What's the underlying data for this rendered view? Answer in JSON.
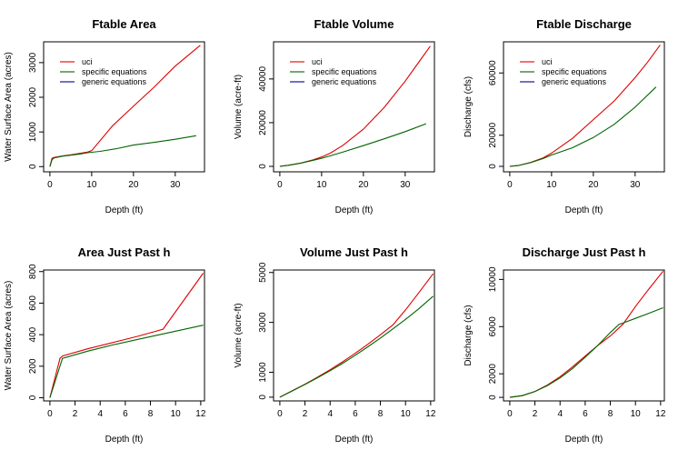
{
  "colors": {
    "uci": "#dd0000",
    "specific": "#006400",
    "generic": "#00008b",
    "axis": "#000000"
  },
  "legend": {
    "placement": "top-left",
    "entries": [
      "uci",
      "specific equations",
      "generic equations"
    ]
  },
  "chart_data": [
    {
      "type": "line",
      "title": "Ftable Area",
      "xlabel": "Depth (ft)",
      "ylabel": "Water Surface Area (acres)",
      "xlim": [
        -1.5,
        37
      ],
      "ylim": [
        -150,
        3600
      ],
      "xticks": [
        0,
        10,
        20,
        30
      ],
      "yticks": [
        0,
        1000,
        2000,
        3000
      ],
      "ytick_labels": [
        "0",
        "1000",
        "2000",
        "3000"
      ],
      "show_legend": true,
      "series": [
        {
          "name": "uci",
          "color": "#dd0000",
          "x": [
            0,
            0.5,
            1,
            3,
            5,
            7,
            9,
            10,
            15,
            20,
            25,
            30,
            36
          ],
          "y": [
            0,
            240,
            265,
            310,
            340,
            380,
            420,
            460,
            1180,
            1740,
            2300,
            2900,
            3500
          ]
        },
        {
          "name": "specific equations",
          "color": "#006400",
          "x": [
            0,
            0.5,
            1,
            3,
            5,
            7,
            9,
            12,
            16,
            20,
            25,
            30,
            35
          ],
          "y": [
            0,
            200,
            250,
            300,
            330,
            360,
            400,
            440,
            520,
            620,
            700,
            790,
            890
          ]
        }
      ]
    },
    {
      "type": "line",
      "title": "Ftable Volume",
      "xlabel": "Depth (ft)",
      "ylabel": "Volume (acre-ft)",
      "xlim": [
        -1.5,
        37
      ],
      "ylim": [
        -2500,
        57000
      ],
      "xticks": [
        0,
        10,
        20,
        30
      ],
      "yticks": [
        0,
        20000,
        40000
      ],
      "ytick_labels": [
        "0",
        "20000",
        "40000"
      ],
      "show_legend": true,
      "series": [
        {
          "name": "uci",
          "color": "#dd0000",
          "x": [
            0,
            2,
            5,
            8,
            10,
            12,
            15,
            20,
            25,
            30,
            33,
            36
          ],
          "y": [
            0,
            500,
            1500,
            3000,
            4300,
            6000,
            9500,
            17000,
            27000,
            39000,
            47000,
            55000
          ]
        },
        {
          "name": "specific equations",
          "color": "#006400",
          "x": [
            0,
            2,
            5,
            8,
            10,
            12,
            15,
            20,
            25,
            30,
            35
          ],
          "y": [
            0,
            500,
            1500,
            2800,
            3700,
            4800,
            6500,
            9500,
            12600,
            15900,
            19500
          ]
        }
      ]
    },
    {
      "type": "line",
      "title": "Ftable Discharge",
      "xlabel": "Depth (ft)",
      "ylabel": "Discharge (cfs)",
      "xlim": [
        -1.5,
        37
      ],
      "ylim": [
        -3500,
        80000
      ],
      "xticks": [
        0,
        10,
        20,
        30
      ],
      "yticks": [
        0,
        20000,
        60000
      ],
      "ytick_labels": [
        "0",
        "20000",
        "60000"
      ],
      "show_legend": true,
      "series": [
        {
          "name": "uci",
          "color": "#dd0000",
          "x": [
            0,
            2,
            5,
            8,
            10,
            15,
            20,
            25,
            30,
            33,
            36
          ],
          "y": [
            0,
            500,
            2500,
            5500,
            8500,
            18000,
            30000,
            42000,
            57000,
            67000,
            78000
          ]
        },
        {
          "name": "specific equations",
          "color": "#006400",
          "x": [
            0,
            2,
            5,
            8,
            10,
            15,
            20,
            25,
            30,
            35
          ],
          "y": [
            0,
            500,
            2400,
            5000,
            7300,
            12000,
            18500,
            27000,
            38000,
            51000
          ]
        }
      ]
    },
    {
      "type": "line",
      "title": "Area Just Past h",
      "xlabel": "Depth (ft)",
      "ylabel": "Water Surface Area (acres)",
      "xlim": [
        -0.5,
        12.3
      ],
      "ylim": [
        -20,
        810
      ],
      "xticks": [
        0,
        2,
        4,
        6,
        8,
        10,
        12
      ],
      "yticks": [
        0,
        200,
        400,
        600,
        800
      ],
      "ytick_labels": [
        "0",
        "200",
        "400",
        "600",
        "800"
      ],
      "show_legend": false,
      "series": [
        {
          "name": "uci",
          "color": "#dd0000",
          "x": [
            0,
            0.8,
            1,
            3,
            5,
            7,
            9,
            12.2
          ],
          "y": [
            0,
            250,
            265,
            310,
            350,
            390,
            435,
            790
          ]
        },
        {
          "name": "specific equations",
          "color": "#006400",
          "x": [
            0,
            1,
            3,
            5,
            7,
            9,
            12.2
          ],
          "y": [
            0,
            250,
            295,
            335,
            370,
            405,
            460
          ]
        }
      ]
    },
    {
      "type": "line",
      "title": "Volume Just Past h",
      "xlabel": "Depth (ft)",
      "ylabel": "Volume (acre-ft)",
      "xlim": [
        -0.5,
        12.3
      ],
      "ylim": [
        -150,
        5100
      ],
      "xticks": [
        0,
        2,
        4,
        6,
        8,
        10,
        12
      ],
      "yticks": [
        0,
        1000,
        3000,
        5000
      ],
      "ytick_labels": [
        "0",
        "1000",
        "3000",
        "5000"
      ],
      "show_legend": false,
      "series": [
        {
          "name": "uci",
          "color": "#dd0000",
          "x": [
            0,
            1,
            2,
            3,
            4,
            5,
            6,
            7,
            8,
            9,
            10,
            11,
            12.2
          ],
          "y": [
            0,
            260,
            520,
            800,
            1100,
            1420,
            1760,
            2120,
            2500,
            2900,
            3500,
            4150,
            4950
          ]
        },
        {
          "name": "specific equations",
          "color": "#006400",
          "x": [
            0,
            1,
            2,
            3,
            4,
            5,
            6,
            7,
            8,
            9,
            10,
            11,
            12.2
          ],
          "y": [
            0,
            250,
            510,
            780,
            1060,
            1360,
            1680,
            2020,
            2370,
            2740,
            3120,
            3520,
            4050
          ]
        }
      ]
    },
    {
      "type": "line",
      "title": "Discharge Just Past h",
      "xlabel": "Depth (ft)",
      "ylabel": "Discharge (cfs)",
      "xlim": [
        -0.5,
        12.3
      ],
      "ylim": [
        -300,
        10800
      ],
      "xticks": [
        0,
        2,
        4,
        6,
        8,
        10,
        12
      ],
      "yticks": [
        0,
        2000,
        6000,
        10000
      ],
      "ytick_labels": [
        "0",
        "2000",
        "6000",
        "10000"
      ],
      "show_legend": false,
      "series": [
        {
          "name": "uci",
          "color": "#dd0000",
          "x": [
            0,
            1,
            2,
            3,
            4,
            5,
            6,
            7,
            8,
            9,
            10,
            11,
            12.2
          ],
          "y": [
            0,
            150,
            500,
            1050,
            1750,
            2600,
            3500,
            4400,
            5200,
            6200,
            7700,
            9100,
            10700
          ]
        },
        {
          "name": "specific equations",
          "color": "#006400",
          "x": [
            0,
            1,
            2,
            3,
            4,
            5,
            6,
            7,
            8,
            8.7,
            9,
            10,
            11,
            12.2
          ],
          "y": [
            0,
            150,
            500,
            1000,
            1650,
            2450,
            3400,
            4400,
            5500,
            6200,
            6300,
            6700,
            7100,
            7600
          ]
        }
      ]
    }
  ]
}
